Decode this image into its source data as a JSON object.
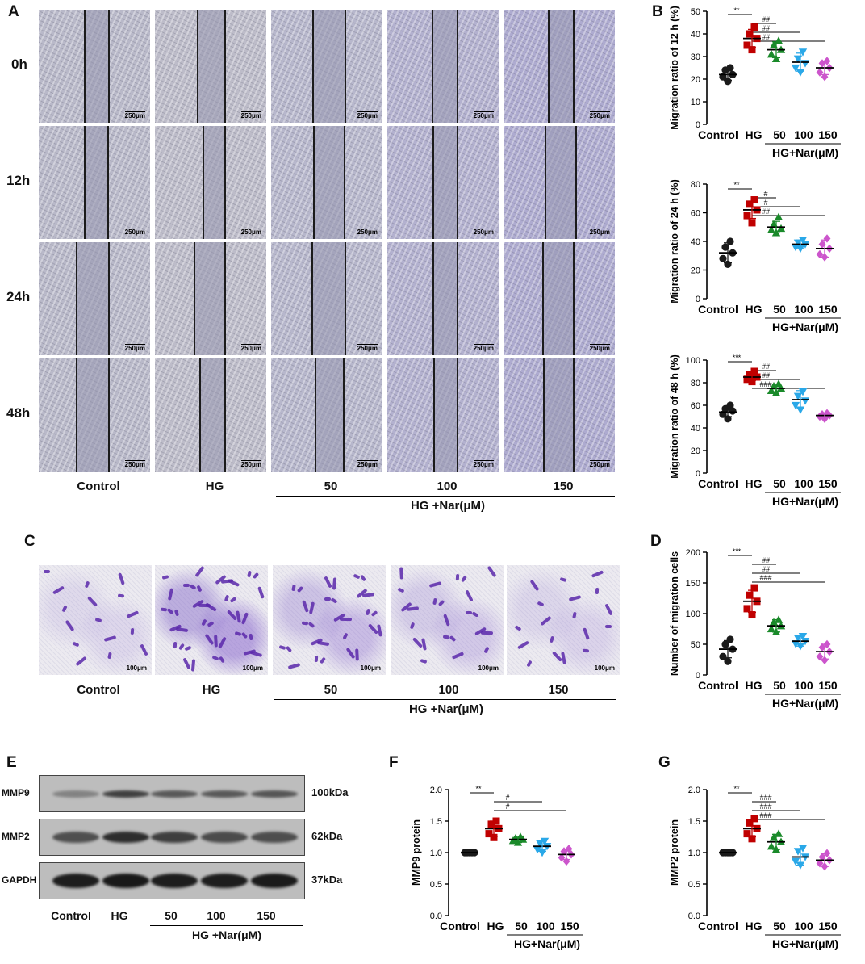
{
  "panels": {
    "A": "A",
    "B": "B",
    "C": "C",
    "D": "D",
    "E": "E",
    "F": "F",
    "G": "G"
  },
  "panel_a": {
    "timepoints": [
      "0h",
      "12h",
      "24h",
      "48h"
    ],
    "groups": [
      "Control",
      "HG",
      "50",
      "100",
      "150"
    ],
    "scale_bar": "250μm",
    "treatment_label": "HG +Nar(μM)"
  },
  "panel_c": {
    "groups": [
      "Control",
      "HG",
      "50",
      "100",
      "150"
    ],
    "scale_bar": "100μm",
    "treatment_label": "HG +Nar(μM)"
  },
  "panel_e": {
    "proteins": [
      {
        "name": "MMP9",
        "size": "100kDa"
      },
      {
        "name": "MMP2",
        "size": "62kDa"
      },
      {
        "name": "GAPDH",
        "size": "37kDa"
      }
    ],
    "groups": [
      "Control",
      "HG",
      "50",
      "100",
      "150"
    ],
    "treatment_label": "HG +Nar(μM)"
  },
  "colors": {
    "Control": "#1a1a1a",
    "HG": "#c00000",
    "50": "#1a8a2a",
    "100": "#2aa8e8",
    "150": "#cc55cc"
  },
  "chart_data": [
    {
      "id": "B1",
      "type": "scatter",
      "ylabel": "Migration ratio of 12 h (%)",
      "categories": [
        "Control",
        "HG",
        "50",
        "100",
        "150"
      ],
      "group_label": "HG+Nar(μM)",
      "ylim": [
        0,
        50
      ],
      "yticks": [
        "0",
        "10",
        "20",
        "30",
        "40",
        "50"
      ],
      "means": [
        22,
        38,
        33,
        27.5,
        25
      ],
      "sd": [
        2.5,
        4,
        3.5,
        4,
        3
      ],
      "points": [
        [
          19,
          21,
          22,
          24,
          25
        ],
        [
          33,
          35,
          38,
          40,
          43
        ],
        [
          29,
          31,
          33,
          35,
          37
        ],
        [
          23,
          25,
          27,
          29,
          32
        ],
        [
          21,
          23,
          25,
          27,
          28
        ]
      ],
      "markers": [
        "circle",
        "square",
        "triangle",
        "triangle-down",
        "diamond"
      ],
      "significance": [
        {
          "from": 0,
          "to": 1,
          "label": "**"
        },
        {
          "from": 1,
          "to": 2,
          "label": "##"
        },
        {
          "from": 1,
          "to": 3,
          "label": "##"
        },
        {
          "from": 1,
          "to": 4,
          "label": "##"
        }
      ]
    },
    {
      "id": "B2",
      "type": "scatter",
      "ylabel": "Migration ratio of 24 h (%)",
      "categories": [
        "Control",
        "HG",
        "50",
        "100",
        "150"
      ],
      "group_label": "HG+Nar(μM)",
      "ylim": [
        0,
        80
      ],
      "yticks": [
        "0",
        "20",
        "40",
        "60",
        "80"
      ],
      "means": [
        32,
        62,
        50,
        38,
        35
      ],
      "sd": [
        7,
        6,
        4,
        3,
        6
      ],
      "points": [
        [
          24,
          28,
          32,
          36,
          40
        ],
        [
          53,
          58,
          62,
          66,
          69
        ],
        [
          46,
          48,
          49,
          52,
          57
        ],
        [
          35,
          36,
          38,
          39,
          41
        ],
        [
          29,
          31,
          35,
          38,
          42
        ]
      ],
      "markers": [
        "circle",
        "square",
        "triangle",
        "triangle-down",
        "diamond"
      ],
      "significance": [
        {
          "from": 0,
          "to": 1,
          "label": "**"
        },
        {
          "from": 1,
          "to": 2,
          "label": "#"
        },
        {
          "from": 1,
          "to": 3,
          "label": "#"
        },
        {
          "from": 1,
          "to": 4,
          "label": "##"
        }
      ]
    },
    {
      "id": "B3",
      "type": "scatter",
      "ylabel": "Migration ratio of 48 h (%)",
      "categories": [
        "Control",
        "HG",
        "50",
        "100",
        "150"
      ],
      "group_label": "HG+Nar(μM)",
      "ylim": [
        0,
        100
      ],
      "yticks": [
        "0",
        "20",
        "40",
        "60",
        "80",
        "100"
      ],
      "means": [
        54,
        85,
        75,
        65,
        51
      ],
      "sd": [
        4,
        3,
        3,
        8,
        2
      ],
      "points": [
        [
          48,
          52,
          55,
          57,
          60
        ],
        [
          81,
          83,
          85,
          87,
          90
        ],
        [
          71,
          73,
          75,
          77,
          79
        ],
        [
          56,
          60,
          64,
          68,
          72
        ],
        [
          48,
          50,
          51,
          52,
          53
        ]
      ],
      "markers": [
        "circle",
        "square",
        "triangle",
        "triangle-down",
        "diamond"
      ],
      "significance": [
        {
          "from": 0,
          "to": 1,
          "label": "***"
        },
        {
          "from": 1,
          "to": 2,
          "label": "##"
        },
        {
          "from": 1,
          "to": 3,
          "label": "##"
        },
        {
          "from": 1,
          "to": 4,
          "label": "###"
        }
      ]
    },
    {
      "id": "D",
      "type": "scatter",
      "ylabel": "Number of migration cells",
      "categories": [
        "Control",
        "HG",
        "50",
        "100",
        "150"
      ],
      "group_label": "HG+Nar(μM)",
      "ylim": [
        0,
        200
      ],
      "yticks": [
        "0",
        "50",
        "100",
        "150",
        "200"
      ],
      "means": [
        42,
        120,
        80,
        55,
        38
      ],
      "sd": [
        14,
        18,
        10,
        8,
        12
      ],
      "points": [
        [
          22,
          30,
          42,
          50,
          58
        ],
        [
          98,
          108,
          120,
          130,
          142
        ],
        [
          70,
          75,
          80,
          86,
          90
        ],
        [
          47,
          51,
          55,
          60,
          63
        ],
        [
          24,
          30,
          38,
          45,
          50
        ]
      ],
      "markers": [
        "circle",
        "square",
        "triangle",
        "triangle-down",
        "diamond"
      ],
      "significance": [
        {
          "from": 0,
          "to": 1,
          "label": "***"
        },
        {
          "from": 1,
          "to": 2,
          "label": "##"
        },
        {
          "from": 1,
          "to": 3,
          "label": "##"
        },
        {
          "from": 1,
          "to": 4,
          "label": "###"
        }
      ]
    },
    {
      "id": "F",
      "type": "scatter",
      "ylabel": "MMP9 protein",
      "categories": [
        "Control",
        "HG",
        "50",
        "100",
        "150"
      ],
      "group_label": "HG+Nar(μM)",
      "ylim": [
        0,
        2.0
      ],
      "yticks": [
        "0.0",
        "0.5",
        "1.0",
        "1.5",
        "2.0"
      ],
      "means": [
        1.0,
        1.38,
        1.21,
        1.1,
        0.97
      ],
      "sd": [
        0,
        0.12,
        0.05,
        0.08,
        0.08
      ],
      "points": [
        [
          1.0,
          1.0,
          1.0,
          1.0,
          1.0
        ],
        [
          1.24,
          1.3,
          1.38,
          1.45,
          1.5
        ],
        [
          1.16,
          1.19,
          1.21,
          1.23,
          1.25
        ],
        [
          1.0,
          1.05,
          1.1,
          1.15,
          1.18
        ],
        [
          0.86,
          0.92,
          0.97,
          1.02,
          1.06
        ]
      ],
      "markers": [
        "circle",
        "square",
        "triangle",
        "triangle-down",
        "diamond"
      ],
      "significance": [
        {
          "from": 0,
          "to": 1,
          "label": "**"
        },
        {
          "from": 1,
          "to": 3,
          "label": "#"
        },
        {
          "from": 1,
          "to": 4,
          "label": "#"
        }
      ]
    },
    {
      "id": "G",
      "type": "scatter",
      "ylabel": "MMP2 protein",
      "categories": [
        "Control",
        "HG",
        "50",
        "100",
        "150"
      ],
      "group_label": "HG+Nar(μM)",
      "ylim": [
        0,
        2.0
      ],
      "yticks": [
        "0.0",
        "0.5",
        "1.0",
        "1.5",
        "2.0"
      ],
      "means": [
        1.0,
        1.38,
        1.17,
        0.93,
        0.88
      ],
      "sd": [
        0,
        0.13,
        0.12,
        0.13,
        0.1
      ],
      "points": [
        [
          1.0,
          1.0,
          1.0,
          1.0,
          1.0
        ],
        [
          1.22,
          1.3,
          1.38,
          1.47,
          1.54
        ],
        [
          1.05,
          1.1,
          1.17,
          1.24,
          1.3
        ],
        [
          0.8,
          0.86,
          0.93,
          1.02,
          1.07
        ],
        [
          0.78,
          0.83,
          0.88,
          0.93,
          0.99
        ]
      ],
      "markers": [
        "circle",
        "square",
        "triangle",
        "triangle-down",
        "diamond"
      ],
      "significance": [
        {
          "from": 0,
          "to": 1,
          "label": "**"
        },
        {
          "from": 1,
          "to": 2,
          "label": "###"
        },
        {
          "from": 1,
          "to": 3,
          "label": "###"
        },
        {
          "from": 1,
          "to": 4,
          "label": "###"
        }
      ]
    }
  ]
}
